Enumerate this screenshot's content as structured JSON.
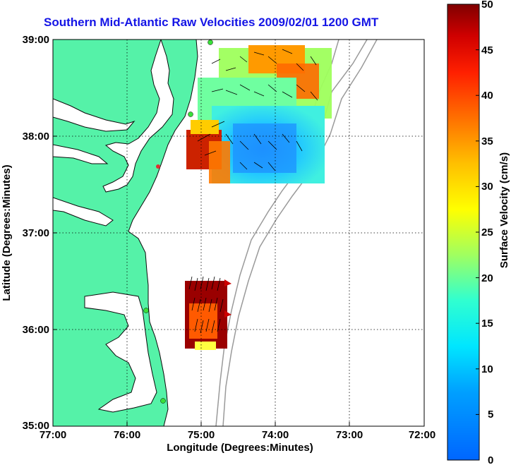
{
  "title": "Southern Mid-Atlantic Raw Velocities 2009/02/01 1200 GMT",
  "map": {
    "x_axis": {
      "label": "Longitude (Degrees:Minutes)",
      "ticks": [
        "77:00",
        "76:00",
        "75:00",
        "74:00",
        "73:00",
        "72:00"
      ]
    },
    "y_axis": {
      "label": "Latitude (Degrees:Minutes)",
      "ticks": [
        "39:00",
        "38:00",
        "37:00",
        "36:00",
        "35:00"
      ]
    },
    "grid": "dotted",
    "land_color": "#55f2a8",
    "bathymetry_color": "#9a9a9a"
  },
  "colorbar": {
    "label": "Surface Velocity (cm/s)",
    "ticks": [
      "50",
      "45",
      "40",
      "35",
      "30",
      "25",
      "20",
      "15",
      "10",
      "5",
      "0"
    ],
    "range": [
      0,
      50
    ],
    "colormap": "jet"
  }
}
